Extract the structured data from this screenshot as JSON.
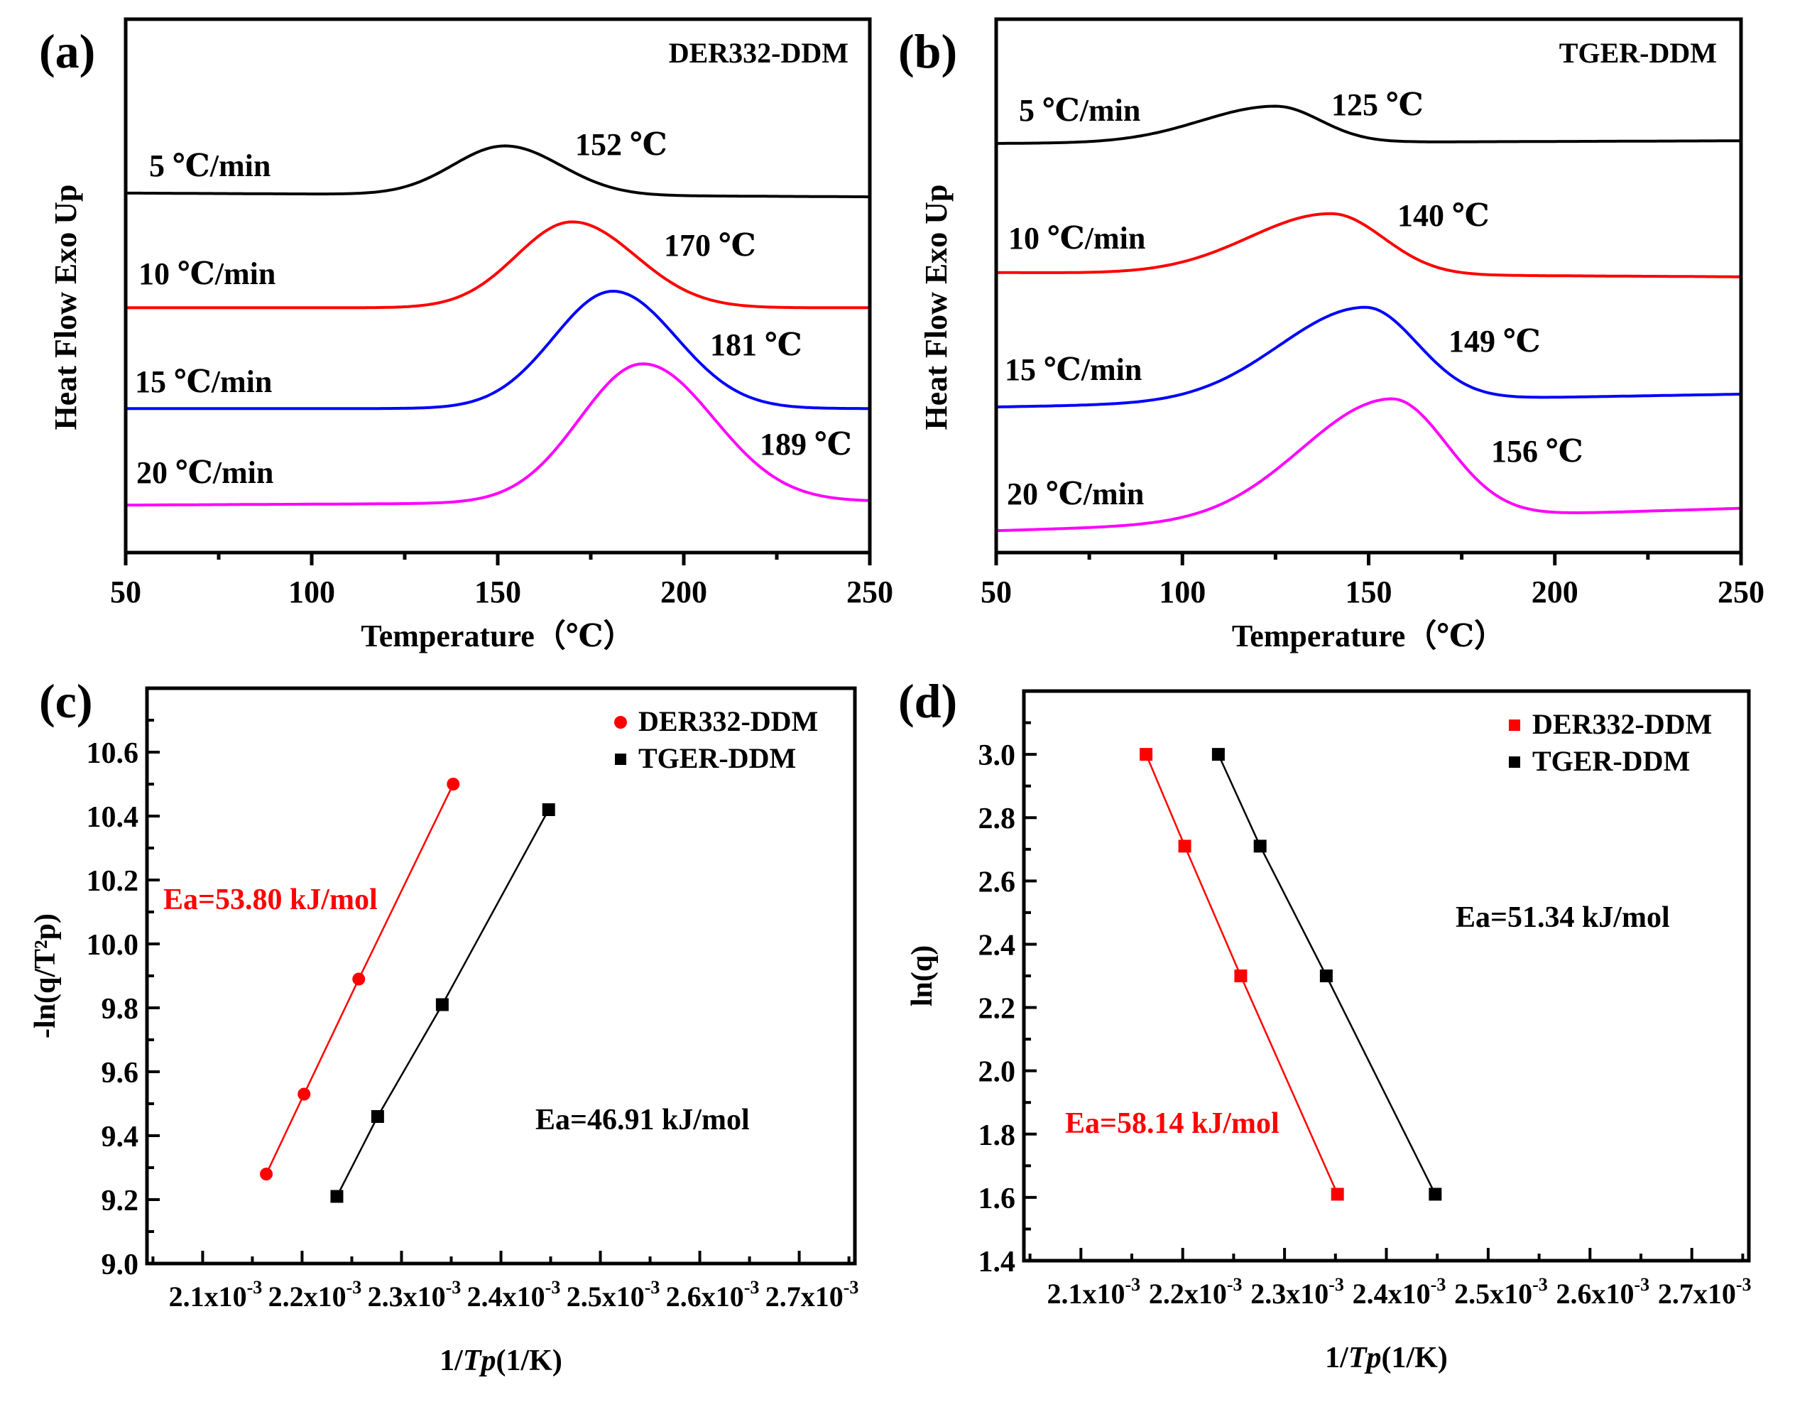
{
  "figure": {
    "panel_labels": [
      "(a)",
      "(b)",
      "(c)",
      "(d)"
    ]
  },
  "chart_data": [
    {
      "id": "a",
      "type": "line",
      "panel_label": "(a)",
      "title": "DER332-DDM",
      "xlabel": "Temperature（℃）",
      "ylabel": "Heat Flow Exo Up",
      "xlim": [
        50,
        250
      ],
      "ylim": [
        0,
        100
      ],
      "y_units": "arbitrary (no tick labels)",
      "xticks": [
        50,
        100,
        150,
        200,
        250
      ],
      "xtick_labels": [
        "50",
        "100",
        "150",
        "200",
        "250"
      ],
      "grid": false,
      "series": [
        {
          "name": "5 ℃/min",
          "color": "#000000",
          "peak_label": "152 ℃",
          "peak_x": 152,
          "baseline_start": 67.4,
          "baseline_end": 66.7,
          "peak_height": 9.2,
          "width_left": 14,
          "width_right": 15
        },
        {
          "name": "10 ℃/min",
          "color": "#ff0000",
          "peak_label": "170 ℃",
          "peak_x": 170,
          "baseline_start": 45.9,
          "baseline_end": 45.9,
          "peak_height": 16.1,
          "width_left": 15,
          "width_right": 17
        },
        {
          "name": "15 ℃/min",
          "color": "#0000ff",
          "peak_label": "181 ℃",
          "peak_x": 181,
          "baseline_start": 27.0,
          "baseline_end": 27.0,
          "peak_height": 22.0,
          "width_left": 16,
          "width_right": 17
        },
        {
          "name": "20 ℃/min",
          "color": "#ff00ff",
          "peak_label": "189 ℃",
          "peak_x": 189,
          "baseline_start": 8.9,
          "baseline_end": 9.6,
          "peak_height": 26.0,
          "width_left": 17,
          "width_right": 19
        }
      ]
    },
    {
      "id": "b",
      "type": "line",
      "panel_label": "(b)",
      "title": "TGER-DDM",
      "xlabel": "Temperature（℃）",
      "ylabel": "Heat Flow Exo Up",
      "xlim": [
        50,
        250
      ],
      "ylim": [
        0,
        100
      ],
      "y_units": "arbitrary (no tick labels)",
      "xticks": [
        50,
        100,
        150,
        200,
        250
      ],
      "xtick_labels": [
        "50",
        "100",
        "150",
        "200",
        "250"
      ],
      "grid": false,
      "series": [
        {
          "name": "5 ℃/min",
          "color": "#000000",
          "peak_label": "125 ℃",
          "peak_x": 125,
          "baseline_start": 76.7,
          "baseline_end": 77.2,
          "peak_height": 6.8,
          "width_left": 20,
          "width_right": 12
        },
        {
          "name": "10 ℃/min",
          "color": "#ff0000",
          "peak_label": "140 ℃",
          "peak_x": 140,
          "baseline_start": 52.5,
          "baseline_end": 51.7,
          "peak_height": 11.4,
          "width_left": 22,
          "width_right": 14
        },
        {
          "name": "15 ℃/min",
          "color": "#0000ff",
          "peak_label": "149 ℃",
          "peak_x": 149,
          "baseline_start": 27.3,
          "baseline_end": 29.7,
          "peak_height": 17.5,
          "width_left": 23,
          "width_right": 14
        },
        {
          "name": "20 ℃/min",
          "color": "#ff00ff",
          "peak_label": "156 ℃",
          "peak_x": 156,
          "baseline_start": 4.1,
          "baseline_end": 8.3,
          "peak_height": 22.5,
          "width_left": 24,
          "width_right": 15
        }
      ]
    },
    {
      "id": "c",
      "type": "scatter",
      "panel_label": "(c)",
      "xlabel_parts": [
        "1/",
        "Tp",
        "(1/K)"
      ],
      "ylabel": "-ln(q/T²p)",
      "xlim": [
        0.002044,
        0.002756
      ],
      "ylim": [
        9.0,
        10.8
      ],
      "xticks": [
        0.0021,
        0.0022,
        0.0023,
        0.0024,
        0.0025,
        0.0026,
        0.0027
      ],
      "xtick_labels": [
        "2.1x10",
        "2.2x10",
        "2.3x10",
        "2.4x10",
        "2.5x10",
        "2.6x10",
        "2.7x10"
      ],
      "xtick_exponent": "-3",
      "yticks": [
        9.0,
        9.2,
        9.4,
        9.6,
        9.8,
        10.0,
        10.2,
        10.4,
        10.6
      ],
      "ytick_labels": [
        "9.0",
        "9.2",
        "9.4",
        "9.6",
        "9.8",
        "10.0",
        "10.2",
        "10.4",
        "10.6"
      ],
      "legend": "top-right",
      "grid": false,
      "series": [
        {
          "name": "DER332-DDM",
          "color": "#ff0000",
          "marker": "circle",
          "x": [
            0.002164,
            0.002202,
            0.002257,
            0.002352
          ],
          "y": [
            9.28,
            9.53,
            9.89,
            10.5
          ],
          "annotation": "Ea=53.80 kJ/mol"
        },
        {
          "name": "TGER-DDM",
          "color": "#000000",
          "marker": "square",
          "x": [
            0.002235,
            0.002276,
            0.002341,
            0.002448
          ],
          "y": [
            9.21,
            9.46,
            9.81,
            10.42
          ],
          "annotation": "Ea=46.91 kJ/mol"
        }
      ]
    },
    {
      "id": "d",
      "type": "scatter",
      "panel_label": "(d)",
      "xlabel_parts": [
        "1/",
        "Tp",
        "(1/K)"
      ],
      "ylabel": "ln(q)",
      "xlim": [
        0.002044,
        0.002756
      ],
      "ylim": [
        1.4,
        3.2
      ],
      "xticks": [
        0.0021,
        0.0022,
        0.0023,
        0.0024,
        0.0025,
        0.0026,
        0.0027
      ],
      "xtick_labels": [
        "2.1x10",
        "2.2x10",
        "2.3x10",
        "2.4x10",
        "2.5x10",
        "2.6x10",
        "2.7x10"
      ],
      "xtick_exponent": "-3",
      "yticks": [
        1.4,
        1.6,
        1.8,
        2.0,
        2.2,
        2.4,
        2.6,
        2.8,
        3.0
      ],
      "ytick_labels": [
        "1.4",
        "1.6",
        "1.8",
        "2.0",
        "2.2",
        "2.4",
        "2.6",
        "2.8",
        "3.0"
      ],
      "legend": "top-right",
      "grid": false,
      "series": [
        {
          "name": "DER332-DDM",
          "color": "#ff0000",
          "marker": "square",
          "x": [
            0.002164,
            0.002202,
            0.002257,
            0.002352
          ],
          "y": [
            3.0,
            2.71,
            2.3,
            1.61
          ],
          "annotation": "Ea=58.14 kJ/mol"
        },
        {
          "name": "TGER-DDM",
          "color": "#000000",
          "marker": "square",
          "x": [
            0.002235,
            0.002276,
            0.002341,
            0.002448
          ],
          "y": [
            3.0,
            2.71,
            2.3,
            1.61
          ],
          "annotation": "Ea=51.34 kJ/mol"
        }
      ]
    }
  ]
}
